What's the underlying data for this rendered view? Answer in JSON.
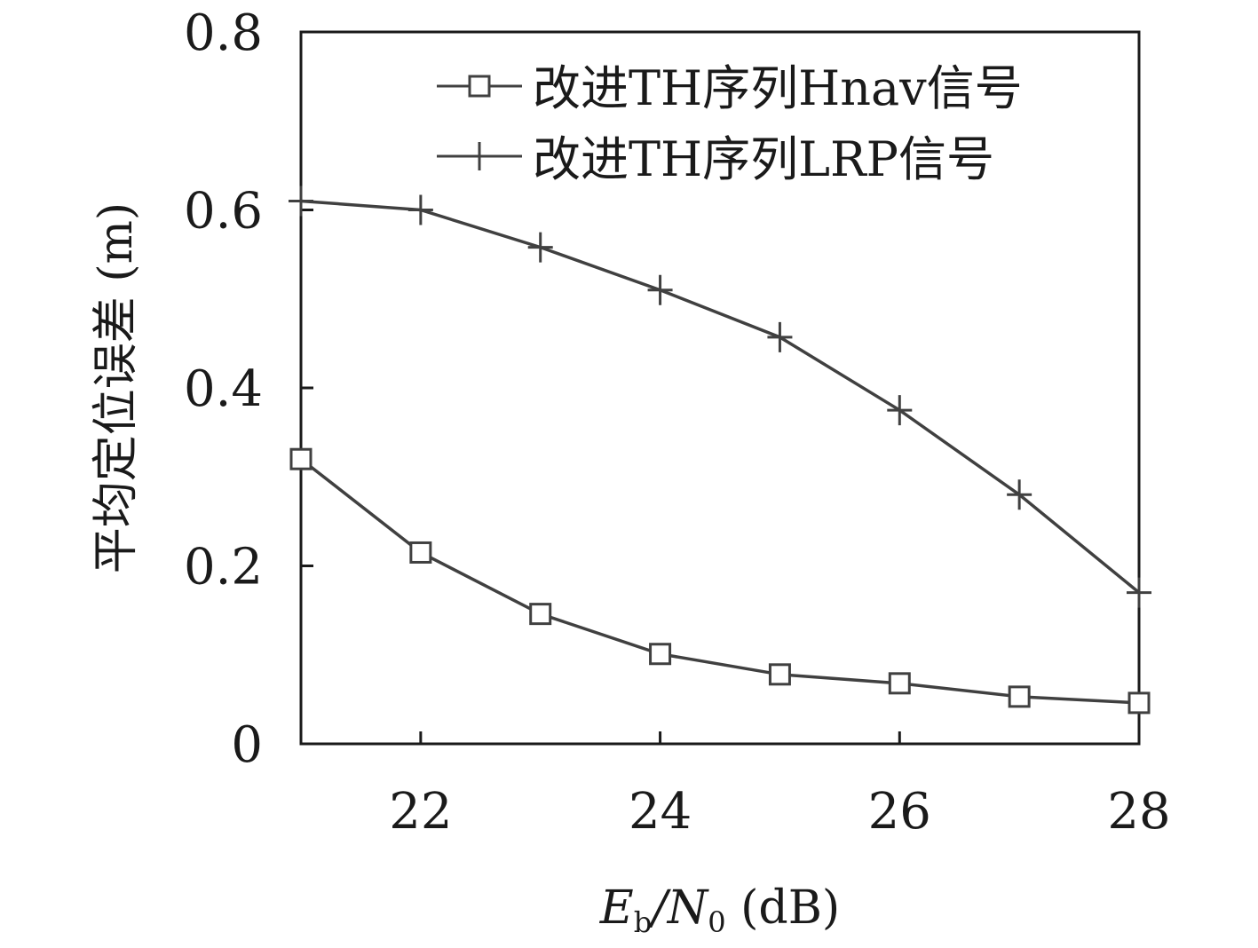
{
  "chart_data": {
    "type": "line",
    "x": [
      21,
      22,
      23,
      24,
      25,
      26,
      27,
      28
    ],
    "xlim": [
      21,
      28
    ],
    "ylim": [
      0,
      0.8
    ],
    "xticks": [
      22,
      24,
      26,
      28
    ],
    "yticks": [
      0,
      0.2,
      0.4,
      0.6,
      0.8
    ],
    "xtick_labels": [
      "22",
      "24",
      "26",
      "28"
    ],
    "ytick_labels": [
      "0",
      "0.2",
      "0.4",
      "0.6",
      "0.8"
    ],
    "xlabel": {
      "prefix": "E",
      "sub1": "b",
      "mid": "/N",
      "sub2": "0",
      "suffix": " (dB)"
    },
    "ylabel": "平均定位误差 (m)",
    "grid": false,
    "legend_position": "top-right",
    "series": [
      {
        "name": "改进TH序列Hnav信号",
        "marker": "square",
        "values": [
          0.32,
          0.215,
          0.146,
          0.101,
          0.078,
          0.068,
          0.053,
          0.046
        ]
      },
      {
        "name": "改进TH序列LRP信号",
        "marker": "plus",
        "values": [
          0.61,
          0.6,
          0.558,
          0.51,
          0.457,
          0.375,
          0.28,
          0.17
        ]
      }
    ],
    "colors": {
      "line": "#404040",
      "axis": "#1a1a1a"
    }
  }
}
